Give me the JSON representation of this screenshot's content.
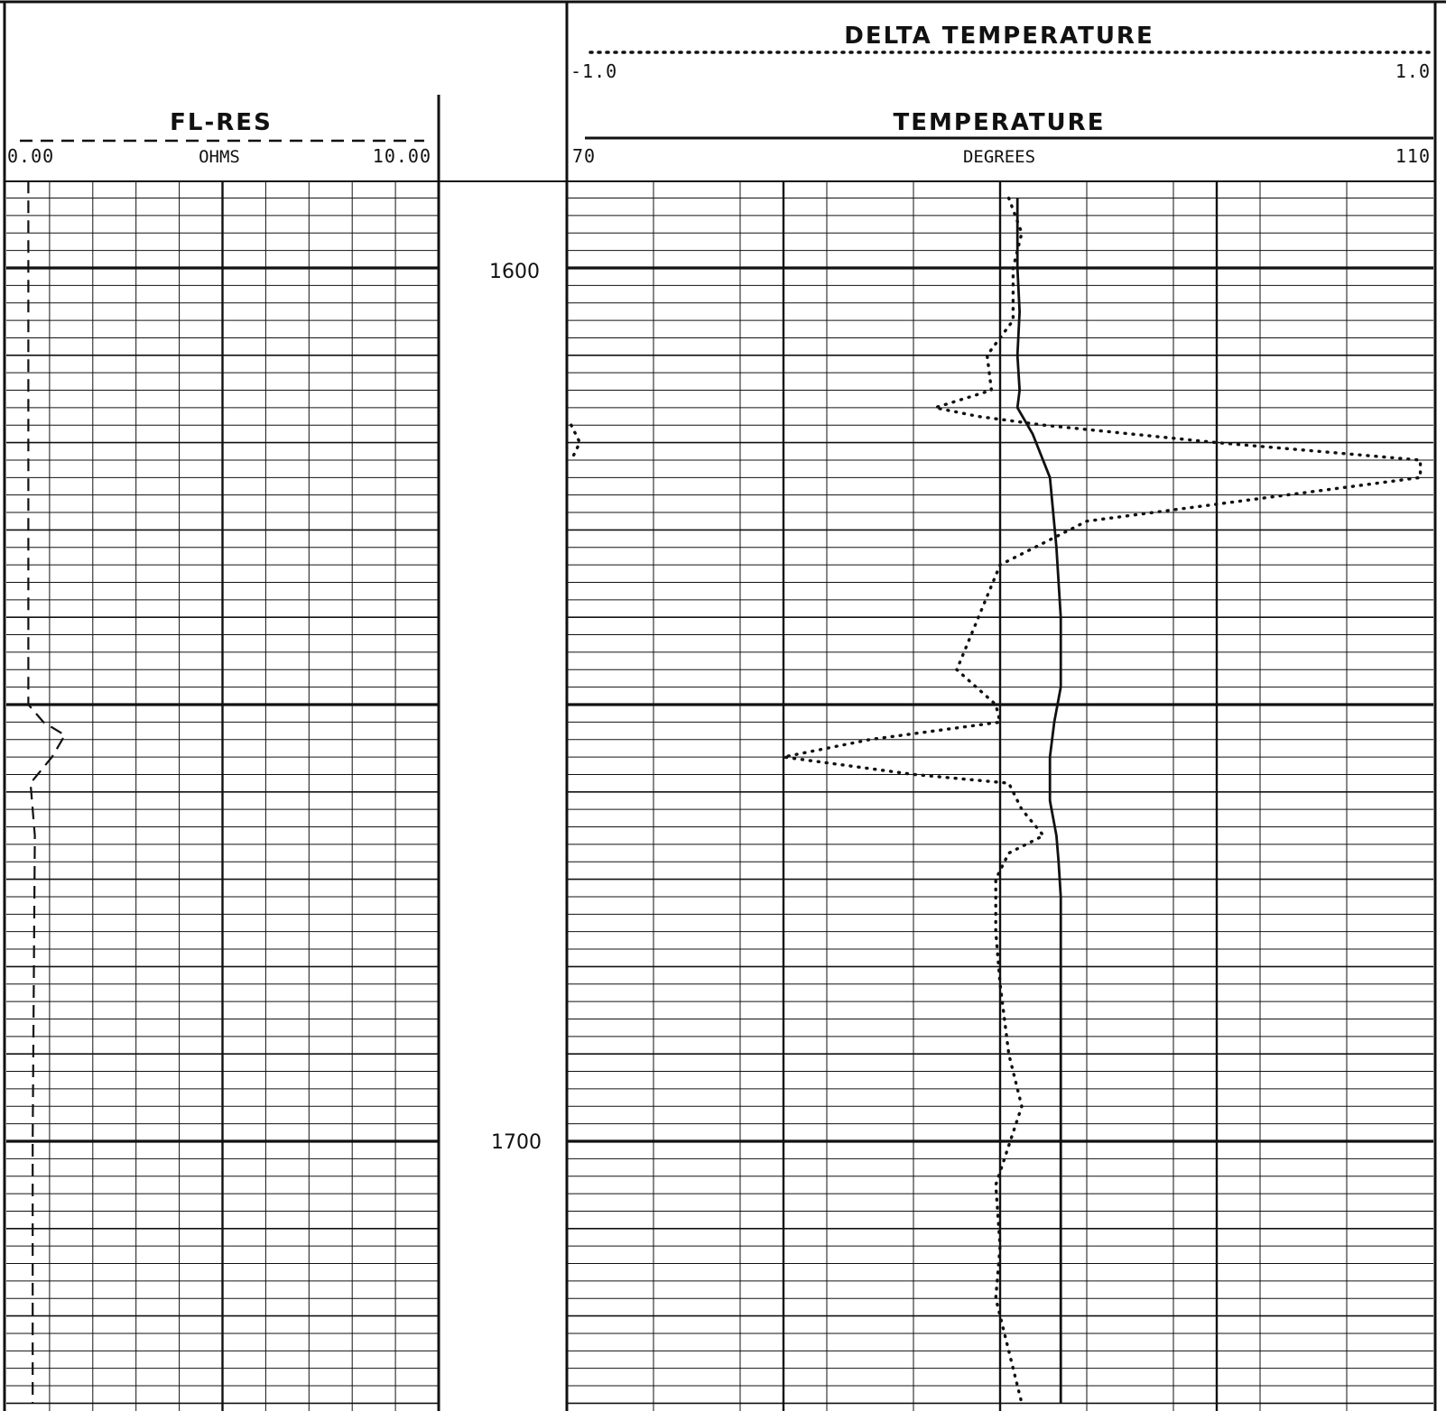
{
  "chart_data": {
    "type": "line",
    "depth_labels": [
      "1600",
      "1700"
    ],
    "depth_range": [
      1590,
      1730
    ],
    "tracks": {
      "fl_res": {
        "title": "FL-RES",
        "unit": "OHMS",
        "min_label": "0.00",
        "max_label": "10.00",
        "min": 0,
        "max": 10,
        "line_style": "dashed"
      },
      "temperature": {
        "title": "TEMPERATURE",
        "unit": "DEGREES",
        "min_label": "70",
        "max_label": "110",
        "min": 70,
        "max": 110,
        "line_style": "solid"
      },
      "delta_temperature": {
        "title": "DELTA TEMPERATURE",
        "min_label": "-1.0",
        "max_label": "1.0",
        "min": -1.0,
        "max": 1.0,
        "line_style": "dotted"
      }
    },
    "series": [
      {
        "track": "fl_res",
        "depth": [
          1590,
          1650,
          1652,
          1653.5,
          1656,
          1659,
          1665,
          1700,
          1730
        ],
        "values": [
          0.45,
          0.45,
          0.8,
          1.3,
          1.0,
          0.5,
          0.6,
          0.55,
          0.55
        ]
      },
      {
        "track": "temperature",
        "depth": [
          1592,
          1596,
          1600,
          1605,
          1610,
          1614,
          1616,
          1619,
          1624,
          1632,
          1640,
          1648,
          1652,
          1656,
          1661,
          1665,
          1668,
          1672,
          1690,
          1700,
          1710,
          1730
        ],
        "values": [
          90.8,
          90.8,
          90.8,
          90.9,
          90.8,
          90.9,
          90.8,
          91.5,
          92.3,
          92.6,
          92.8,
          92.8,
          92.5,
          92.3,
          92.3,
          92.6,
          92.7,
          92.8,
          92.8,
          92.8,
          92.8,
          92.8
        ]
      },
      {
        "track": "delta_temperature",
        "depth": [
          1592,
          1596,
          1600,
          1606,
          1610,
          1614,
          1616,
          1617,
          1618,
          1620,
          1622,
          1624,
          1629,
          1634,
          1640,
          1646,
          1650,
          1652,
          1654,
          1656,
          1658,
          1659,
          1662,
          1665,
          1667,
          1670,
          1676,
          1682,
          1690,
          1696,
          1705,
          1712,
          1718,
          1726,
          1730
        ],
        "values": [
          0.02,
          0.05,
          0.03,
          0.03,
          -0.03,
          -0.02,
          -0.15,
          -0.05,
          0.1,
          0.5,
          0.97,
          0.97,
          0.2,
          0.0,
          -0.05,
          -0.1,
          -0.01,
          0.0,
          -0.3,
          -0.5,
          -0.2,
          0.02,
          0.05,
          0.1,
          0.02,
          -0.01,
          -0.01,
          0.0,
          0.02,
          0.05,
          -0.01,
          0.0,
          -0.01,
          0.03,
          0.05
        ]
      },
      {
        "track": "delta_temperature",
        "depth": [
          1618,
          1620,
          1622
        ],
        "values": [
          -0.99,
          -0.97,
          -0.99
        ]
      }
    ],
    "grid": true
  }
}
